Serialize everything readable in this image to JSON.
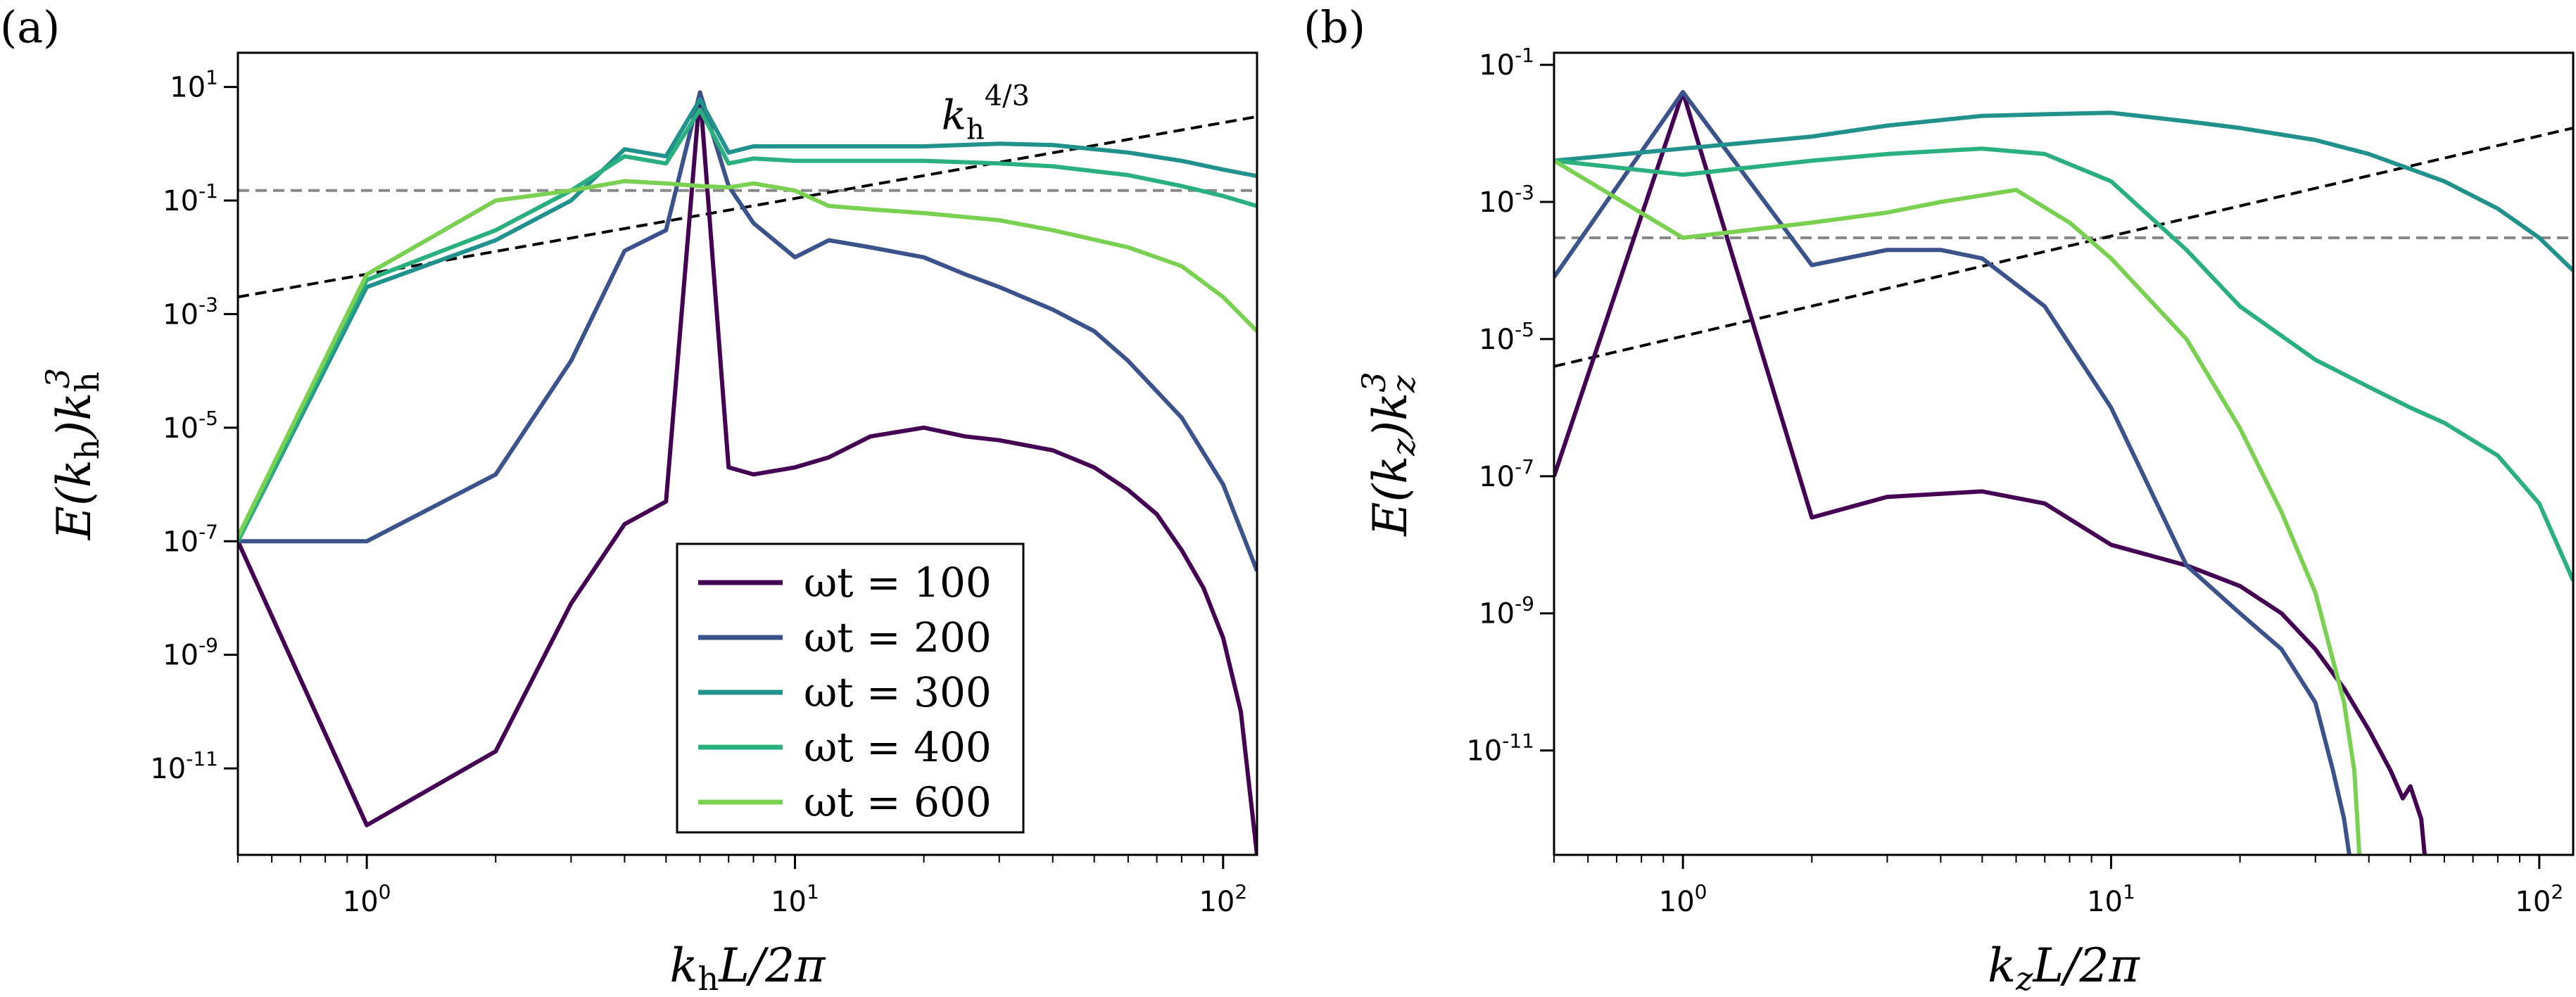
{
  "chart_data": [
    {
      "type": "line",
      "panel": "(a)",
      "xlabel": "k_h L/2π",
      "xlabel_parts": {
        "k": "k",
        "sub": "h",
        "rest": "L/2π"
      },
      "ylabel": "E(k_h)k_h^3",
      "ylabel_parts": {
        "pre": "E(k",
        "sub1": "h",
        "mid": ")k",
        "sub2": "h",
        "sup": "3"
      },
      "xscale": "log",
      "yscale": "log",
      "xlim": [
        0.5,
        120
      ],
      "ylim": [
        3e-13,
        40
      ],
      "x_ticks": [
        {
          "value": 1,
          "base": "10",
          "exp": "0"
        },
        {
          "value": 10,
          "base": "10",
          "exp": "1"
        },
        {
          "value": 100,
          "base": "10",
          "exp": "2"
        }
      ],
      "y_ticks": [
        {
          "value": 10,
          "base": "10",
          "exp": "1"
        },
        {
          "value": 0.1,
          "base": "10",
          "exp": "-1"
        },
        {
          "value": 0.001,
          "base": "10",
          "exp": "-3"
        },
        {
          "value": 1e-05,
          "base": "10",
          "exp": "-5"
        },
        {
          "value": 1e-07,
          "base": "10",
          "exp": "-7"
        },
        {
          "value": 1e-09,
          "base": "10",
          "exp": "-9"
        },
        {
          "value": 1e-11,
          "base": "10",
          "exp": "-11"
        }
      ],
      "reference_lines": [
        {
          "kind": "hline",
          "y": 0.15,
          "style": "dashed",
          "color": "#888888"
        },
        {
          "kind": "power_law",
          "slope": 1.333,
          "x": [
            0.5,
            120
          ],
          "y": [
            0.002,
            3.0
          ],
          "style": "dashed",
          "color": "#000000",
          "label_parts": {
            "k": "k",
            "sub": "h",
            "sup": "4/3"
          },
          "label_x": 22,
          "label_y": 1.8
        }
      ],
      "legend": {
        "position": "center-bottom",
        "entries": [
          "ωt = 100",
          "ωt = 200",
          "ωt = 300",
          "ωt = 400",
          "ωt = 600"
        ]
      },
      "series": [
        {
          "name": "ωt = 100",
          "color": "#440154",
          "x": [
            0.5,
            1,
            2,
            3,
            4,
            5,
            6,
            7,
            8,
            10,
            12,
            15,
            20,
            25,
            30,
            40,
            50,
            60,
            70,
            80,
            90,
            100,
            110,
            115,
            120
          ],
          "y": [
            1e-07,
            1e-12,
            2e-11,
            8e-09,
            2e-07,
            5e-07,
            8,
            2e-06,
            1.5e-06,
            2e-06,
            3e-06,
            7e-06,
            1e-05,
            7e-06,
            6e-06,
            4e-06,
            2e-06,
            8e-07,
            3e-07,
            7e-08,
            1.5e-08,
            2e-09,
            1e-10,
            5e-12,
            3e-13
          ]
        },
        {
          "name": "ωt = 200",
          "color": "#3b528b",
          "x": [
            0.5,
            1,
            2,
            3,
            4,
            5,
            6,
            7,
            8,
            10,
            12,
            15,
            20,
            25,
            30,
            40,
            50,
            60,
            80,
            100,
            120
          ],
          "y": [
            1e-07,
            1e-07,
            1.5e-06,
            0.00015,
            0.013,
            0.03,
            8,
            0.18,
            0.04,
            0.01,
            0.02,
            0.015,
            0.01,
            0.005,
            0.003,
            0.0012,
            0.0005,
            0.00015,
            1.5e-05,
            1e-06,
            3e-08
          ]
        },
        {
          "name": "ωt = 300",
          "color": "#21918c",
          "x": [
            0.5,
            1,
            2,
            3,
            4,
            5,
            6,
            7,
            8,
            10,
            15,
            20,
            30,
            40,
            60,
            80,
            100,
            120
          ],
          "y": [
            1e-07,
            0.003,
            0.02,
            0.1,
            0.8,
            0.6,
            6,
            0.7,
            0.9,
            0.9,
            0.9,
            0.9,
            1.0,
            0.95,
            0.7,
            0.5,
            0.35,
            0.27
          ]
        },
        {
          "name": "ωt = 400",
          "color": "#2ab07f",
          "x": [
            0.5,
            1,
            2,
            3,
            4,
            5,
            6,
            7,
            8,
            10,
            15,
            20,
            30,
            40,
            60,
            80,
            100,
            120
          ],
          "y": [
            1e-07,
            0.004,
            0.03,
            0.15,
            0.6,
            0.45,
            4,
            0.45,
            0.55,
            0.5,
            0.5,
            0.5,
            0.45,
            0.4,
            0.28,
            0.18,
            0.12,
            0.08
          ]
        },
        {
          "name": "ωt = 600",
          "color": "#7ad151",
          "x": [
            0.5,
            1,
            2,
            3,
            4,
            5,
            6,
            7,
            8,
            10,
            12,
            15,
            20,
            30,
            40,
            60,
            80,
            100,
            120
          ],
          "y": [
            1.2e-07,
            0.005,
            0.1,
            0.15,
            0.22,
            0.2,
            0.18,
            0.17,
            0.2,
            0.15,
            0.08,
            0.07,
            0.06,
            0.045,
            0.03,
            0.015,
            0.007,
            0.002,
            0.0005
          ]
        }
      ]
    },
    {
      "type": "line",
      "panel": "(b)",
      "xlabel": "k_z L/2π",
      "xlabel_parts": {
        "k": "k",
        "sub": "z",
        "rest": "L/2π"
      },
      "ylabel": "E(k_z)k_z^3",
      "ylabel_parts": {
        "pre": "E(k",
        "sub1": "z",
        "mid": ")k",
        "sub2": "z",
        "sup": "3"
      },
      "xscale": "log",
      "yscale": "log",
      "xlim": [
        0.5,
        120
      ],
      "ylim": [
        3e-13,
        0.15
      ],
      "x_ticks": [
        {
          "value": 1,
          "base": "10",
          "exp": "0"
        },
        {
          "value": 10,
          "base": "10",
          "exp": "1"
        },
        {
          "value": 100,
          "base": "10",
          "exp": "2"
        }
      ],
      "y_ticks": [
        {
          "value": 0.1,
          "base": "10",
          "exp": "-1"
        },
        {
          "value": 0.001,
          "base": "10",
          "exp": "-3"
        },
        {
          "value": 1e-05,
          "base": "10",
          "exp": "-5"
        },
        {
          "value": 1e-07,
          "base": "10",
          "exp": "-7"
        },
        {
          "value": 1e-09,
          "base": "10",
          "exp": "-9"
        },
        {
          "value": 1e-11,
          "base": "10",
          "exp": "-11"
        }
      ],
      "reference_lines": [
        {
          "kind": "hline",
          "y": 0.0003,
          "style": "dashed",
          "color": "#888888"
        },
        {
          "kind": "power_law",
          "slope": 1.333,
          "x": [
            0.5,
            120
          ],
          "y": [
            4e-06,
            0.012
          ],
          "style": "dashed",
          "color": "#000000"
        }
      ],
      "series": [
        {
          "name": "ωt = 100",
          "color": "#440154",
          "x": [
            0.5,
            1,
            2,
            3,
            5,
            7,
            10,
            15,
            20,
            25,
            30,
            35,
            40,
            45,
            48,
            50,
            53,
            54
          ],
          "y": [
            1e-07,
            0.04,
            2.5e-08,
            5e-08,
            6e-08,
            4e-08,
            1e-08,
            5e-09,
            2.5e-09,
            1e-09,
            3e-10,
            8e-11,
            2e-11,
            5e-12,
            2e-12,
            3e-12,
            1e-12,
            3e-13
          ]
        },
        {
          "name": "ωt = 200",
          "color": "#3b528b",
          "x": [
            0.5,
            1,
            2,
            3,
            4,
            5,
            7,
            10,
            15,
            20,
            25,
            30,
            33,
            35,
            36
          ],
          "y": [
            8e-05,
            0.04,
            0.00012,
            0.0002,
            0.0002,
            0.00015,
            3e-05,
            1e-06,
            5e-09,
            1e-09,
            3e-10,
            5e-11,
            5e-12,
            1e-12,
            3e-13
          ]
        },
        {
          "name": "ωt = 300",
          "color": "#21918c",
          "x": [
            0.5,
            1,
            2,
            3,
            5,
            7,
            10,
            15,
            20,
            30,
            40,
            60,
            80,
            100,
            120
          ],
          "y": [
            0.004,
            0.006,
            0.009,
            0.013,
            0.018,
            0.019,
            0.02,
            0.015,
            0.012,
            0.008,
            0.005,
            0.002,
            0.0008,
            0.0003,
            0.0001
          ]
        },
        {
          "name": "ωt = 400",
          "color": "#2ab07f",
          "x": [
            0.5,
            1,
            2,
            3,
            5,
            7,
            10,
            15,
            20,
            30,
            40,
            50,
            60,
            80,
            100,
            120
          ],
          "y": [
            0.004,
            0.0025,
            0.004,
            0.005,
            0.006,
            0.005,
            0.002,
            0.0002,
            3e-05,
            5e-06,
            2e-06,
            1e-06,
            6e-07,
            2e-07,
            4e-08,
            3e-09
          ]
        },
        {
          "name": "ωt = 600",
          "color": "#7ad151",
          "x": [
            0.5,
            1,
            2,
            3,
            4,
            6,
            8,
            10,
            15,
            20,
            25,
            30,
            35,
            37,
            38
          ],
          "y": [
            0.004,
            0.0003,
            0.0005,
            0.0007,
            0.001,
            0.0015,
            0.0005,
            0.00015,
            1e-05,
            5e-07,
            3e-08,
            2e-09,
            5e-11,
            5e-12,
            3e-13
          ]
        }
      ]
    }
  ]
}
